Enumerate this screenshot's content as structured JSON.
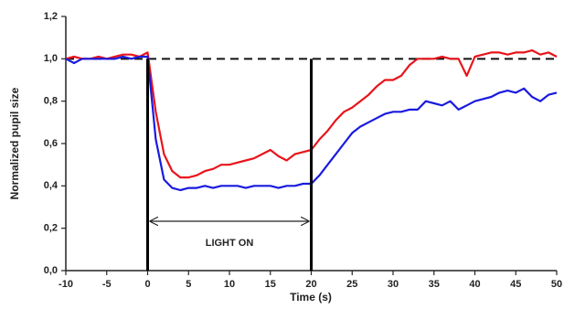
{
  "chart_data": {
    "type": "line",
    "x_label": "Time (s)",
    "y_label": "Normalized pupil size",
    "x": [
      -10,
      -9,
      -8,
      -7,
      -6,
      -5,
      -4,
      -3,
      -2,
      -1,
      0,
      1,
      2,
      3,
      4,
      5,
      6,
      7,
      8,
      9,
      10,
      11,
      12,
      13,
      14,
      15,
      16,
      17,
      18,
      19,
      20,
      21,
      22,
      23,
      24,
      25,
      26,
      27,
      28,
      29,
      30,
      31,
      32,
      33,
      34,
      35,
      36,
      37,
      38,
      39,
      40,
      41,
      42,
      43,
      44,
      45,
      46,
      47,
      48,
      49,
      50
    ],
    "series": [
      {
        "color": "#e8141b",
        "values": [
          1.0,
          1.01,
          1.0,
          1.0,
          1.01,
          1.0,
          1.01,
          1.02,
          1.02,
          1.01,
          1.03,
          0.75,
          0.55,
          0.47,
          0.44,
          0.44,
          0.45,
          0.47,
          0.48,
          0.5,
          0.5,
          0.51,
          0.52,
          0.53,
          0.55,
          0.57,
          0.54,
          0.52,
          0.55,
          0.56,
          0.57,
          0.62,
          0.66,
          0.71,
          0.75,
          0.77,
          0.8,
          0.83,
          0.87,
          0.9,
          0.9,
          0.92,
          0.97,
          1.0,
          1.0,
          1.0,
          1.01,
          1.0,
          1.0,
          0.92,
          1.01,
          1.02,
          1.03,
          1.03,
          1.02,
          1.03,
          1.03,
          1.04,
          1.02,
          1.03,
          1.01
        ]
      },
      {
        "color": "#1a1adf",
        "values": [
          1.0,
          0.98,
          1.0,
          1.0,
          1.0,
          1.0,
          1.0,
          1.01,
          1.0,
          1.01,
          1.01,
          0.62,
          0.43,
          0.39,
          0.38,
          0.39,
          0.39,
          0.4,
          0.39,
          0.4,
          0.4,
          0.4,
          0.39,
          0.4,
          0.4,
          0.4,
          0.39,
          0.4,
          0.4,
          0.41,
          0.41,
          0.45,
          0.5,
          0.55,
          0.6,
          0.65,
          0.68,
          0.7,
          0.72,
          0.74,
          0.75,
          0.75,
          0.76,
          0.76,
          0.8,
          0.79,
          0.78,
          0.8,
          0.76,
          0.78,
          0.8,
          0.81,
          0.82,
          0.84,
          0.85,
          0.84,
          0.86,
          0.82,
          0.8,
          0.83,
          0.84
        ]
      }
    ],
    "xlim": [
      -10,
      50
    ],
    "xticks": [
      -10,
      -5,
      0,
      5,
      10,
      15,
      20,
      25,
      30,
      35,
      40,
      45,
      50
    ],
    "ylim": [
      0,
      1.2
    ],
    "yticks": [
      {
        "value": 0,
        "label": "0,0"
      },
      {
        "value": 0.2,
        "label": "0,2"
      },
      {
        "value": 0.4,
        "label": "0,4"
      },
      {
        "value": 0.6,
        "label": "0,6"
      },
      {
        "value": 0.8,
        "label": "0,8"
      },
      {
        "value": 1.0,
        "label": "1,0"
      },
      {
        "value": 1.2,
        "label": "1,2"
      }
    ],
    "reference_line": 1.0,
    "light_on": {
      "label": "LIGHT ON",
      "start": 0,
      "end": 20
    },
    "grid": false
  }
}
